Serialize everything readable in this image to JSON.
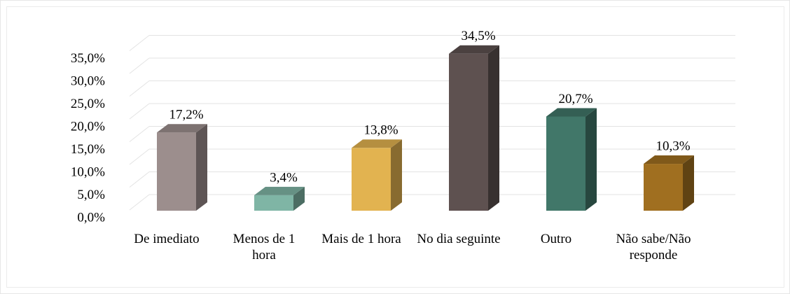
{
  "chart_data": {
    "type": "bar3d",
    "categories": [
      "De imediato",
      "Menos de 1 hora",
      "Mais de 1 hora",
      "No dia seguinte",
      "Outro",
      "Não sabe/Não responde"
    ],
    "values": [
      17.2,
      3.4,
      13.8,
      34.5,
      20.7,
      10.3
    ],
    "value_labels": [
      "17,2%",
      "3,4%",
      "13,8%",
      "34,5%",
      "20,7%",
      "10,3%"
    ],
    "colors": [
      "#9c8e8d",
      "#7fb5a5",
      "#e2b350",
      "#5e5150",
      "#417769",
      "#a06f20"
    ],
    "ylim": [
      0,
      35
    ],
    "yticks": [
      {
        "value": 0,
        "label": "0,0%"
      },
      {
        "value": 5,
        "label": "5,0%"
      },
      {
        "value": 10,
        "label": "10,0%"
      },
      {
        "value": 15,
        "label": "15,0%"
      },
      {
        "value": 20,
        "label": "20,0%"
      },
      {
        "value": 25,
        "label": "25,0%"
      },
      {
        "value": 30,
        "label": "30,0%"
      },
      {
        "value": 35,
        "label": "35,0%"
      }
    ],
    "grid": true
  }
}
